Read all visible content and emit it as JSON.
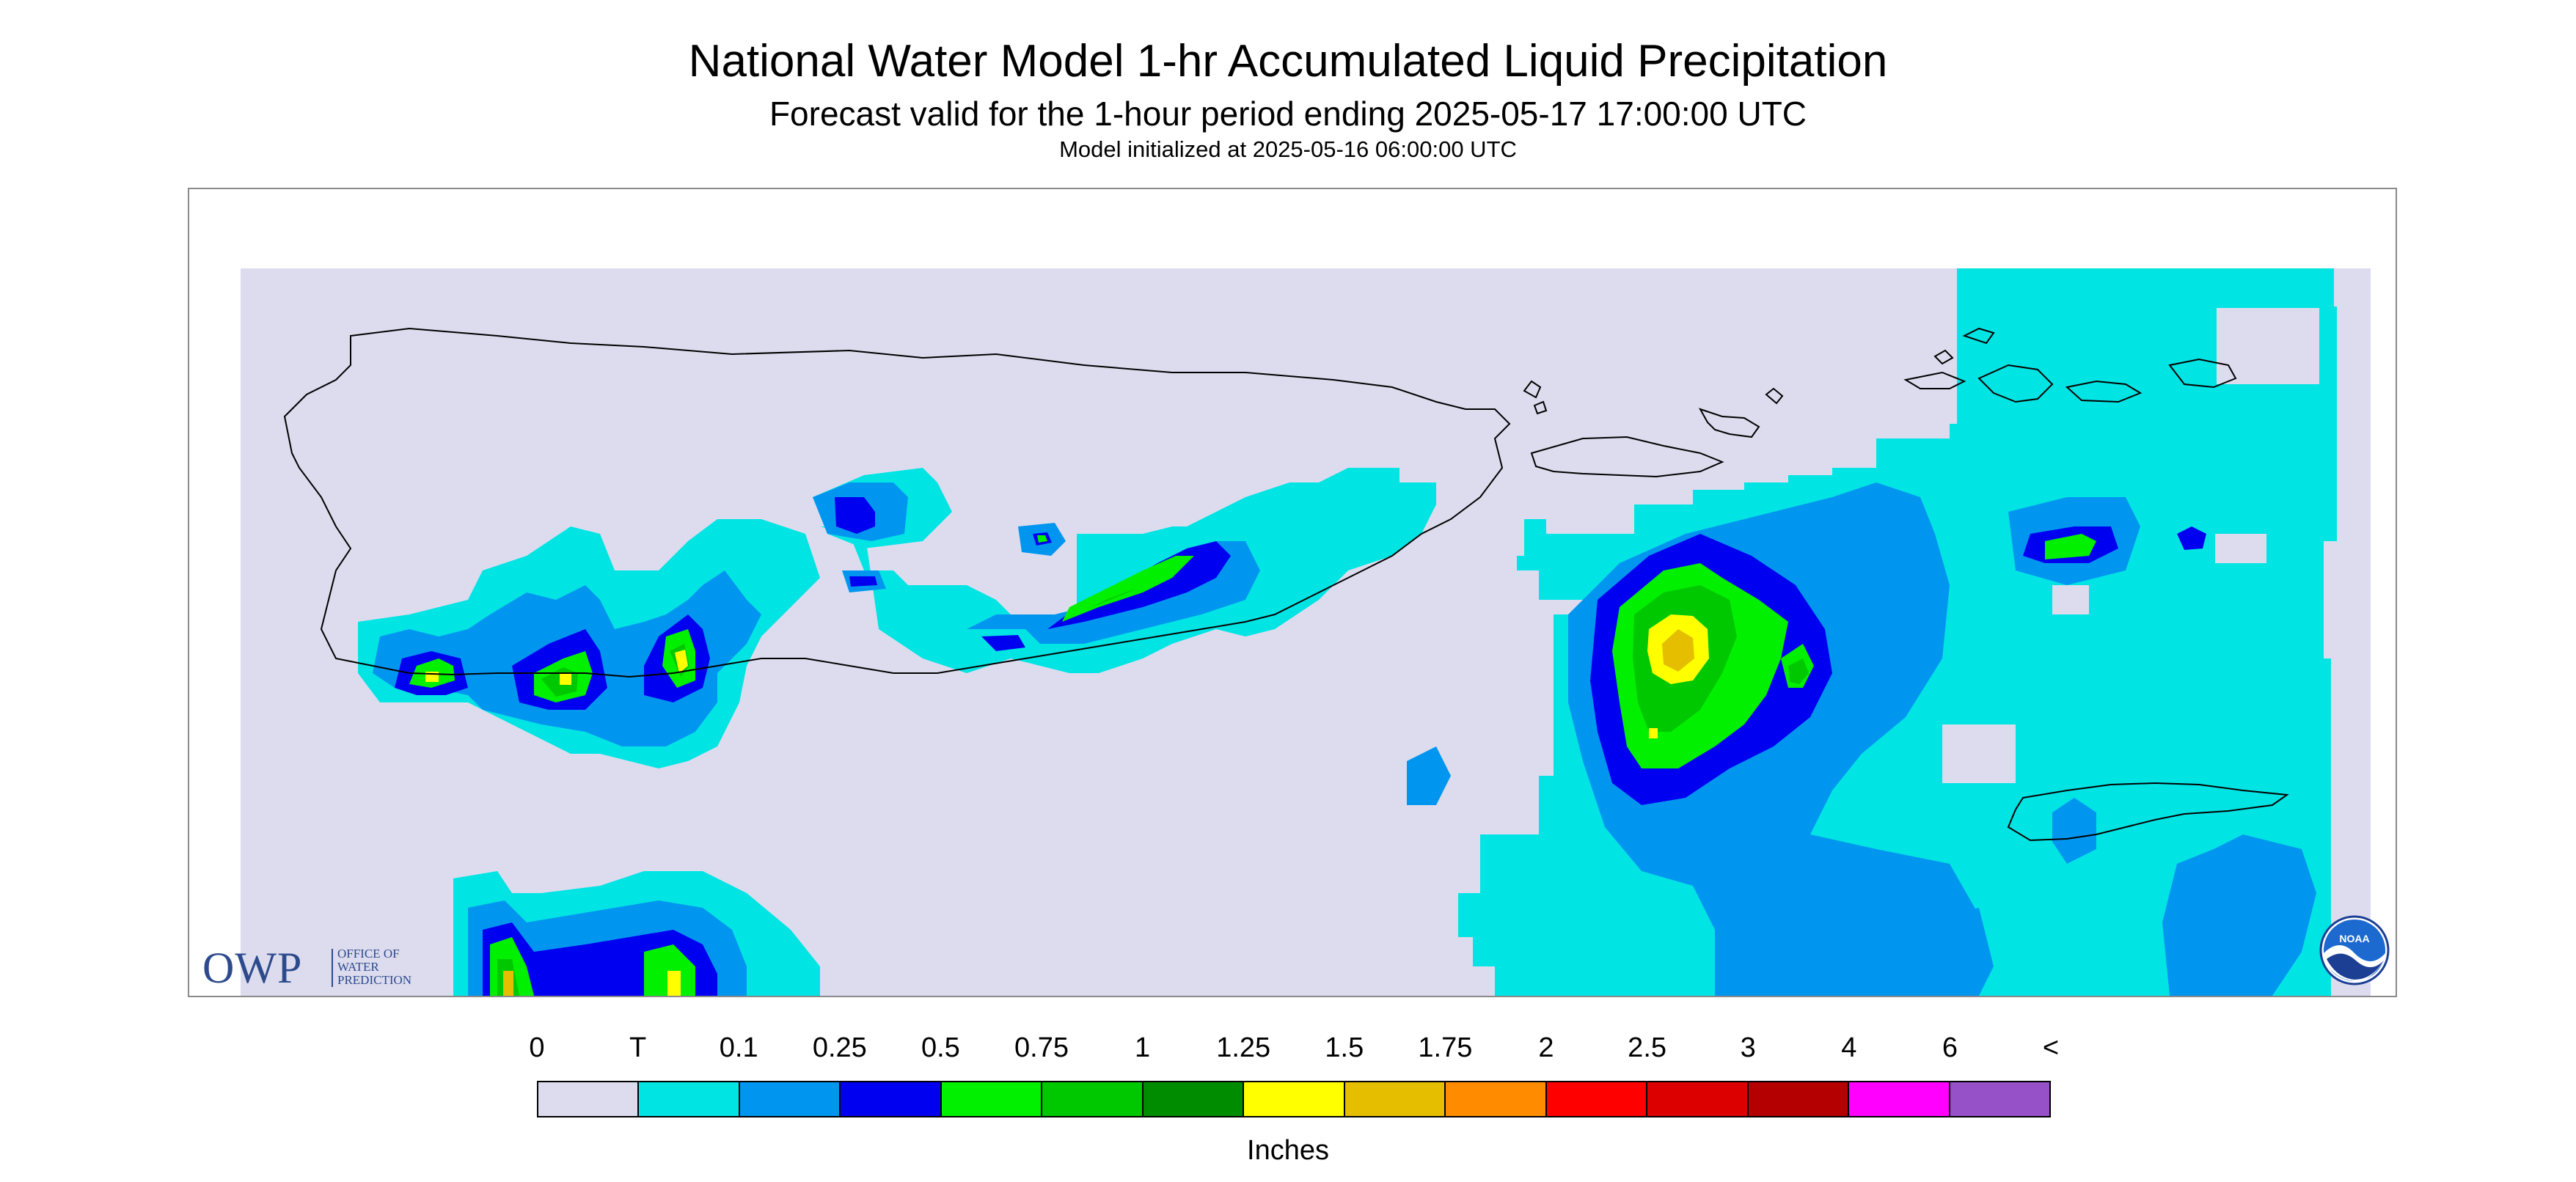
{
  "header": {
    "title": "National Water Model 1-hr Accumulated Liquid Precipitation",
    "subtitle": "Forecast valid for the 1-hour period ending 2025-05-17 17:00:00 UTC",
    "init_line": "Model initialized at 2025-05-16 06:00:00 UTC"
  },
  "map": {
    "background_color": "#dcdcee",
    "frame_color": "#8a8a8a",
    "coastline_color": "#000000",
    "regions_shown": [
      "Puerto Rico",
      "Vieques",
      "Culebra",
      "U.S. Virgin Islands",
      "British Virgin Islands"
    ]
  },
  "logos": {
    "owp": {
      "letters": "OWP",
      "line1": "OFFICE OF",
      "line2": "WATER",
      "line3": "PREDICTION"
    },
    "noaa": {
      "text": "NOAA"
    }
  },
  "legend": {
    "labels": [
      "0",
      "T",
      "0.1",
      "0.25",
      "0.5",
      "0.75",
      "1",
      "1.25",
      "1.5",
      "1.75",
      "2",
      "2.5",
      "3",
      "4",
      "6",
      "<"
    ],
    "colors": [
      "#dcdcee",
      "#00e4e4",
      "#0096f0",
      "#0000f0",
      "#00f000",
      "#00c800",
      "#008c00",
      "#ffff00",
      "#e6be00",
      "#ff8c00",
      "#ff0000",
      "#dc0000",
      "#b40000",
      "#ff00ff",
      "#9650c8"
    ],
    "units": "Inches"
  }
}
